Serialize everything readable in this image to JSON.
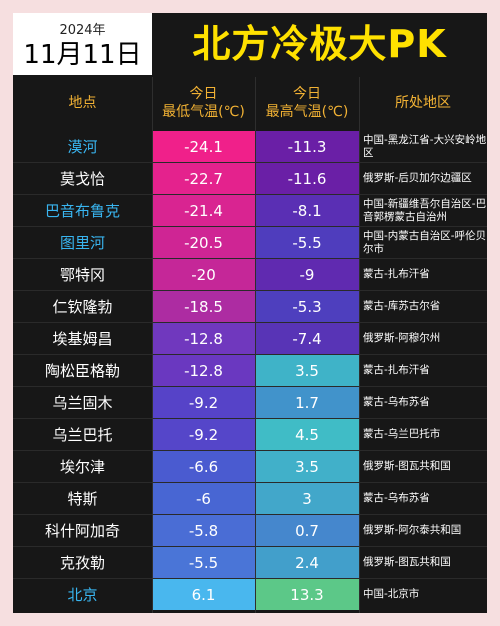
{
  "header": {
    "year": "2024年",
    "date": "11月11日",
    "title": "北方冷极大PK"
  },
  "table": {
    "columns": {
      "location": "地点",
      "low_line1": "今日",
      "low_line2": "最低气温(℃)",
      "high_line1": "今日",
      "high_line2": "最高气温(℃)",
      "region": "所处地区"
    },
    "rows": [
      {
        "location": "漠河",
        "low": "-24.1",
        "high": "-11.3",
        "region": "中国-黑龙江省-大兴安岭地区",
        "highlight": true,
        "low_color": "#f0208a",
        "high_color": "#6a1fa6"
      },
      {
        "location": "莫戈恰",
        "low": "-22.7",
        "high": "-11.6",
        "region": "俄罗斯-后贝加尔边疆区",
        "highlight": false,
        "low_color": "#e4228d",
        "high_color": "#6a1fa6"
      },
      {
        "location": "巴音布鲁克",
        "low": "-21.4",
        "high": "-8.1",
        "region": "中国-新疆维吾尔自治区-巴音郭楞蒙古自治州",
        "highlight": true,
        "low_color": "#d92491",
        "high_color": "#5a2fb4"
      },
      {
        "location": "图里河",
        "low": "-20.5",
        "high": "-5.5",
        "region": "中国-内蒙古自治区-呼伦贝尔市",
        "highlight": true,
        "low_color": "#cf2594",
        "high_color": "#4f3dbd"
      },
      {
        "location": "鄂特冈",
        "low": "-20",
        "high": "-9",
        "region": "蒙古-扎布汗省",
        "highlight": false,
        "low_color": "#c52798",
        "high_color": "#602ab0"
      },
      {
        "location": "仁钦隆勃",
        "low": "-18.5",
        "high": "-5.3",
        "region": "蒙古-库苏古尔省",
        "highlight": false,
        "low_color": "#ad2ca2",
        "high_color": "#4e3fbe"
      },
      {
        "location": "埃基姆昌",
        "low": "-12.8",
        "high": "-7.4",
        "region": "俄罗斯-阿穆尔州",
        "highlight": false,
        "low_color": "#7038be",
        "high_color": "#5834b6"
      },
      {
        "location": "陶松臣格勒",
        "low": "-12.8",
        "high": "3.5",
        "region": "蒙古-扎布汗省",
        "highlight": false,
        "low_color": "#6a38c0",
        "high_color": "#3fb3c8"
      },
      {
        "location": "乌兰固木",
        "low": "-9.2",
        "high": "1.7",
        "region": "蒙古-乌布苏省",
        "highlight": false,
        "low_color": "#5643c8",
        "high_color": "#4193cb"
      },
      {
        "location": "乌兰巴托",
        "low": "-9.2",
        "high": "4.5",
        "region": "蒙古-乌兰巴托市",
        "highlight": false,
        "low_color": "#5546c9",
        "high_color": "#40bcc6"
      },
      {
        "location": "埃尔津",
        "low": "-6.6",
        "high": "3.5",
        "region": "俄罗斯-图瓦共和国",
        "highlight": false,
        "low_color": "#4a5bd0",
        "high_color": "#41b0c9"
      },
      {
        "location": "特斯",
        "low": "-6",
        "high": "3",
        "region": "蒙古-乌布苏省",
        "highlight": false,
        "low_color": "#4866d3",
        "high_color": "#42a7ca"
      },
      {
        "location": "科什阿加奇",
        "low": "-5.8",
        "high": "0.7",
        "region": "俄罗斯-阿尔泰共和国",
        "highlight": false,
        "low_color": "#4a6dd5",
        "high_color": "#4587cd"
      },
      {
        "location": "克孜勒",
        "low": "-5.5",
        "high": "2.4",
        "region": "俄罗斯-图瓦共和国",
        "highlight": false,
        "low_color": "#4a75d7",
        "high_color": "#429fcb"
      },
      {
        "location": "北京",
        "low": "6.1",
        "high": "13.3",
        "region": "中国-北京市",
        "highlight": true,
        "low_color": "#49b7ee",
        "high_color": "#5cc888"
      }
    ]
  }
}
